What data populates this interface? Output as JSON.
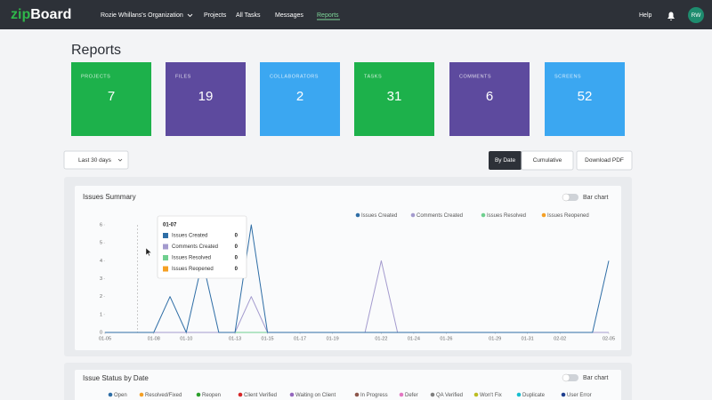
{
  "nav": {
    "logo_a": "zip",
    "logo_b": "Board",
    "items": [
      "Rozie Whillans's Organization",
      "Projects",
      "All Tasks",
      "Messages",
      "Reports"
    ],
    "active": 4,
    "help": "Help",
    "avatar": "RW"
  },
  "page_title": "Reports",
  "cards": [
    {
      "label": "PROJECTS",
      "value": 7,
      "color": "#1db14b"
    },
    {
      "label": "FILES",
      "value": 19,
      "color": "#5d4a9e"
    },
    {
      "label": "COLLABORATORS",
      "value": 2,
      "color": "#3ba7f1"
    },
    {
      "label": "TASKS",
      "value": 31,
      "color": "#1db14b"
    },
    {
      "label": "COMMENTS",
      "value": 6,
      "color": "#5d4a9e"
    },
    {
      "label": "SCREENS",
      "value": 52,
      "color": "#3ba7f1"
    }
  ],
  "controls": {
    "range": "Last 30 days",
    "by_date": "By Date",
    "cumulative": "Cumulative",
    "download": "Download PDF"
  },
  "chart_data": {
    "type": "line",
    "title": "Issues Summary",
    "toggle": "Bar chart",
    "categories": [
      "01-05",
      null,
      null,
      "01-08",
      null,
      "01-10",
      null,
      null,
      "01-13",
      null,
      "01-15",
      null,
      "01-17",
      null,
      "01-19",
      null,
      null,
      "01-22",
      null,
      "01-24",
      null,
      "01-26",
      null,
      null,
      "01-29",
      null,
      "01-31",
      null,
      "02-02",
      null,
      null,
      "02-05"
    ],
    "series": [
      {
        "name": "Issues Created",
        "color": "#2f6ea6",
        "values": [
          0,
          0,
          0,
          0,
          2,
          0,
          4,
          0,
          0,
          6,
          0,
          0,
          0,
          0,
          0,
          0,
          0,
          0,
          0,
          0,
          0,
          0,
          0,
          0,
          0,
          0,
          0,
          0,
          0,
          0,
          0,
          4
        ]
      },
      {
        "name": "Comments Created",
        "color": "#a49bce",
        "values": [
          0,
          0,
          0,
          0,
          0,
          0,
          0,
          0,
          0,
          2,
          0,
          0,
          0,
          0,
          0,
          0,
          0,
          4,
          0,
          0,
          0,
          0,
          0,
          0,
          0,
          0,
          0,
          0,
          0,
          0,
          0,
          0
        ]
      },
      {
        "name": "Issues Resolved",
        "color": "#6fcf8f",
        "values": [
          0,
          0,
          0,
          0,
          0,
          0,
          0,
          0,
          0,
          0,
          0,
          0,
          0,
          0,
          0,
          0,
          0,
          0,
          0,
          0,
          0,
          0,
          0,
          0,
          0,
          0,
          0,
          0,
          0,
          0,
          0,
          0
        ]
      },
      {
        "name": "Issues Reopened",
        "color": "#f5a024",
        "values": [
          0,
          0,
          0,
          0,
          0,
          0,
          0,
          0,
          0,
          0,
          0,
          0,
          0,
          0,
          0,
          0,
          0,
          0,
          0,
          0,
          0,
          0,
          0,
          0,
          0,
          0,
          0,
          0,
          0,
          0,
          0,
          0
        ]
      }
    ],
    "ylim": [
      0,
      6
    ],
    "yticks": [
      0,
      1,
      2,
      3,
      4,
      5,
      6
    ],
    "grid": false,
    "tooltip_date": "01-07",
    "tooltip_index": 2
  },
  "status_panel": {
    "title": "Issue Status by Date",
    "toggle": "Bar chart",
    "legend": [
      {
        "name": "Open",
        "color": "#2f6ea6"
      },
      {
        "name": "Resolved/Fixed",
        "color": "#f5a024"
      },
      {
        "name": "Reopen",
        "color": "#2ca02c"
      },
      {
        "name": "Client Verified",
        "color": "#d62728"
      },
      {
        "name": "Waiting on Client",
        "color": "#9467bd"
      },
      {
        "name": "In Progress",
        "color": "#8c564b"
      },
      {
        "name": "Defer",
        "color": "#e377c2"
      },
      {
        "name": "QA Verified",
        "color": "#7f7f7f"
      },
      {
        "name": "Won't Fix",
        "color": "#bcbd22"
      },
      {
        "name": "Duplicate",
        "color": "#17becf"
      },
      {
        "name": "User Error",
        "color": "#1f3f8f"
      }
    ]
  }
}
